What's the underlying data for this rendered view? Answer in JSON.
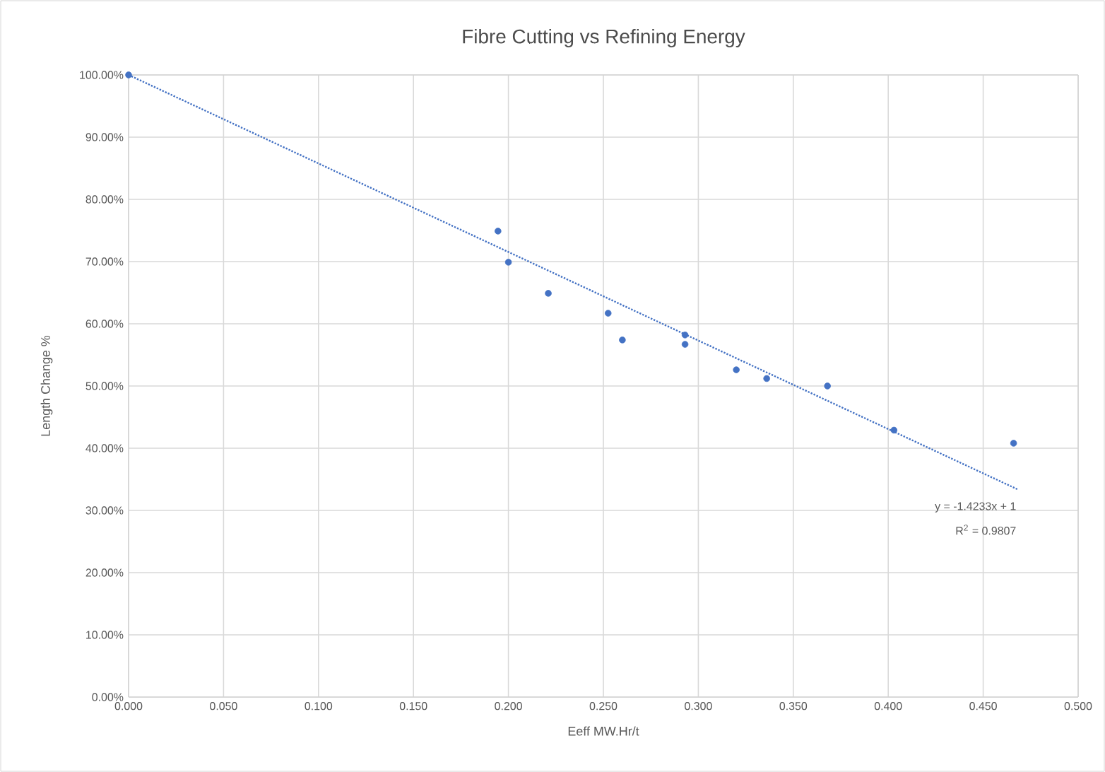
{
  "chart_data": {
    "type": "scatter",
    "title": "Fibre Cutting vs Refining Energy",
    "xlabel": "Eeff MW.Hr/t",
    "ylabel": "Length Change %",
    "xlim": [
      0,
      0.5
    ],
    "ylim": [
      0,
      100
    ],
    "xticks": [
      {
        "value": 0,
        "label": "0.000"
      },
      {
        "value": 0.05,
        "label": "0.050"
      },
      {
        "value": 0.1,
        "label": "0.100"
      },
      {
        "value": 0.15,
        "label": "0.150"
      },
      {
        "value": 0.2,
        "label": "0.200"
      },
      {
        "value": 0.25,
        "label": "0.250"
      },
      {
        "value": 0.3,
        "label": "0.300"
      },
      {
        "value": 0.35,
        "label": "0.350"
      },
      {
        "value": 0.4,
        "label": "0.400"
      },
      {
        "value": 0.45,
        "label": "0.450"
      },
      {
        "value": 0.5,
        "label": "0.500"
      }
    ],
    "yticks": [
      {
        "value": 0,
        "label": "0.00%"
      },
      {
        "value": 10,
        "label": "10.00%"
      },
      {
        "value": 20,
        "label": "20.00%"
      },
      {
        "value": 30,
        "label": "30.00%"
      },
      {
        "value": 40,
        "label": "40.00%"
      },
      {
        "value": 50,
        "label": "50.00%"
      },
      {
        "value": 60,
        "label": "60.00%"
      },
      {
        "value": 70,
        "label": "70.00%"
      },
      {
        "value": 80,
        "label": "80.00%"
      },
      {
        "value": 90,
        "label": "90.00%"
      },
      {
        "value": 100,
        "label": "100.00%"
      }
    ],
    "grid": true,
    "series": [
      {
        "marker": "circle",
        "color": "#4472c4",
        "x": [
          0,
          0.1945,
          0.2,
          0.221,
          0.2525,
          0.26,
          0.293,
          0.293,
          0.32,
          0.336,
          0.368,
          0.403,
          0.466
        ],
        "values": [
          100,
          74.9,
          69.9,
          64.9,
          61.7,
          57.4,
          58.2,
          56.7,
          52.6,
          51.2,
          50.0,
          42.9,
          40.8
        ]
      },
      {
        "type": "line",
        "marker": "none",
        "color": "#4472c4",
        "line_style": "dotted",
        "x": [
          0,
          0.468
        ],
        "values": [
          100,
          33.4
        ]
      }
    ],
    "annotations": [
      "y = -1.4233x + 1",
      "R$^{2}$ = 0.9807"
    ]
  }
}
